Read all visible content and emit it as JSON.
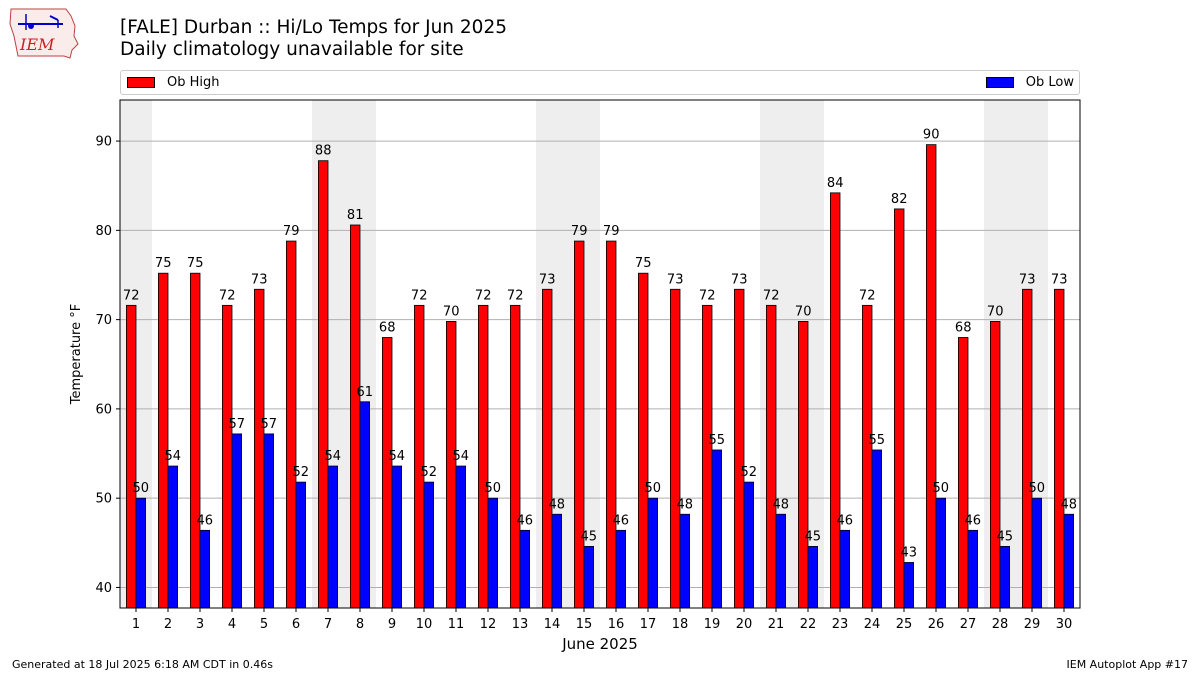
{
  "title_line1": "[FALE] Durban :: Hi/Lo Temps for Jun 2025",
  "title_line2": "Daily climatology unavailable for site",
  "logo_text": "IEM",
  "legend": [
    {
      "label": "Ob High",
      "color": "#ff0000",
      "placement": "left"
    },
    {
      "label": "Ob Low",
      "color": "#0000ff",
      "placement": "right"
    }
  ],
  "footer_left": "Generated at 18 Jul 2025 6:18 AM CDT in 0.46s",
  "footer_right": "IEM Autoplot App #17",
  "chart_data": {
    "type": "bar",
    "xlabel": "June 2025",
    "ylabel": "Temperature °F",
    "ylim": [
      37.7,
      94.6
    ],
    "yticks": [
      40,
      50,
      60,
      70,
      80,
      90
    ],
    "grid": true,
    "categories": [
      "1",
      "2",
      "3",
      "4",
      "5",
      "6",
      "7",
      "8",
      "9",
      "10",
      "11",
      "12",
      "13",
      "14",
      "15",
      "16",
      "17",
      "18",
      "19",
      "20",
      "21",
      "22",
      "23",
      "24",
      "25",
      "26",
      "27",
      "28",
      "29",
      "30"
    ],
    "weekend_shaded_days": [
      1,
      7,
      8,
      14,
      15,
      21,
      22,
      28,
      29
    ],
    "series": [
      {
        "name": "Ob High",
        "color": "#ff0000",
        "values": [
          71.6,
          75.2,
          75.2,
          71.6,
          73.4,
          78.8,
          87.8,
          80.6,
          68.0,
          71.6,
          69.8,
          71.6,
          71.6,
          73.4,
          78.8,
          78.8,
          75.2,
          73.4,
          71.6,
          73.4,
          71.6,
          69.8,
          84.2,
          71.6,
          82.4,
          89.6,
          68.0,
          69.8,
          73.4,
          73.4
        ],
        "labels": [
          "72",
          "75",
          "75",
          "72",
          "73",
          "79",
          "88",
          "81",
          "68",
          "72",
          "70",
          "72",
          "72",
          "73",
          "79",
          "79",
          "75",
          "73",
          "72",
          "73",
          "72",
          "70",
          "84",
          "72",
          "82",
          "90",
          "68",
          "70",
          "73",
          "73"
        ]
      },
      {
        "name": "Ob Low",
        "color": "#0000ff",
        "values": [
          50.0,
          53.6,
          46.4,
          57.2,
          57.2,
          51.8,
          53.6,
          60.8,
          53.6,
          51.8,
          53.6,
          50.0,
          46.4,
          48.2,
          44.6,
          46.4,
          50.0,
          48.2,
          55.4,
          51.8,
          48.2,
          44.6,
          46.4,
          55.4,
          42.8,
          50.0,
          46.4,
          44.6,
          50.0,
          48.2
        ],
        "labels": [
          "50",
          "54",
          "46",
          "57",
          "57",
          "52",
          "54",
          "61",
          "54",
          "52",
          "54",
          "50",
          "46",
          "48",
          "45",
          "46",
          "50",
          "48",
          "55",
          "52",
          "48",
          "45",
          "46",
          "55",
          "43",
          "50",
          "46",
          "45",
          "50",
          "48"
        ]
      }
    ]
  }
}
